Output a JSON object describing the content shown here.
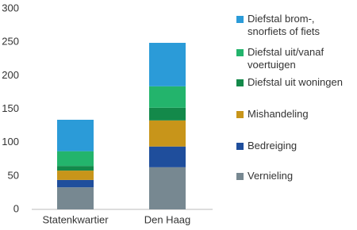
{
  "chart_data": {
    "type": "stacked-bar",
    "categories": [
      "Statenkwartier",
      "Den Haag"
    ],
    "series": [
      {
        "name": "Vernieling",
        "color": "#778891",
        "values": [
          33,
          63
        ]
      },
      {
        "name": "Bedreiging",
        "color": "#1f4e9c",
        "values": [
          11,
          31
        ]
      },
      {
        "name": "Mishandeling",
        "color": "#c8951a",
        "values": [
          14,
          39
        ]
      },
      {
        "name": "Diefstal uit woningen",
        "color": "#13894a",
        "values": [
          7,
          19
        ]
      },
      {
        "name": "Diefstal uit/vanaf voertuigen",
        "color": "#23b46c",
        "values": [
          22,
          32
        ]
      },
      {
        "name": "Diefstal brom-, snorfiets of fiets",
        "color": "#2b9bd8",
        "values": [
          47,
          65
        ]
      }
    ],
    "ylim": [
      0,
      300
    ],
    "yticks": [
      0,
      50,
      100,
      150,
      200,
      250,
      300
    ],
    "grid": false,
    "legend": "right"
  }
}
